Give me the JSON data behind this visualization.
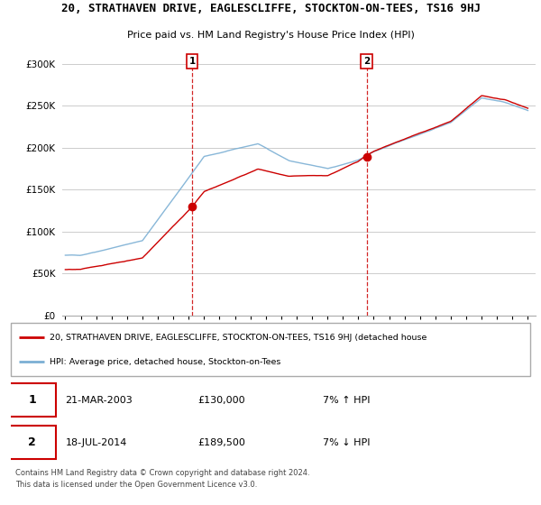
{
  "title_line1": "20, STRATHAVEN DRIVE, EAGLESCLIFFE, STOCKTON-ON-TEES, TS16 9HJ",
  "title_line2": "Price paid vs. HM Land Registry's House Price Index (HPI)",
  "ylim": [
    0,
    310000
  ],
  "yticks": [
    0,
    50000,
    100000,
    150000,
    200000,
    250000,
    300000
  ],
  "ytick_labels": [
    "£0",
    "£50K",
    "£100K",
    "£150K",
    "£200K",
    "£250K",
    "£300K"
  ],
  "sale1_year": 2003.22,
  "sale1_price": 130000,
  "sale1_date": "21-MAR-2003",
  "sale1_pct": "7% ↑ HPI",
  "sale2_year": 2014.54,
  "sale2_price": 189500,
  "sale2_date": "18-JUL-2014",
  "sale2_pct": "7% ↓ HPI",
  "line_color_property": "#cc0000",
  "line_color_hpi": "#7bafd4",
  "vline_color": "#cc0000",
  "bg_color": "#ffffff",
  "grid_color": "#cccccc",
  "legend_label_property": "20, STRATHAVEN DRIVE, EAGLESCLIFFE, STOCKTON-ON-TEES, TS16 9HJ (detached house",
  "legend_label_hpi": "HPI: Average price, detached house, Stockton-on-Tees",
  "footnote": "Contains HM Land Registry data © Crown copyright and database right 2024.\nThis data is licensed under the Open Government Licence v3.0."
}
